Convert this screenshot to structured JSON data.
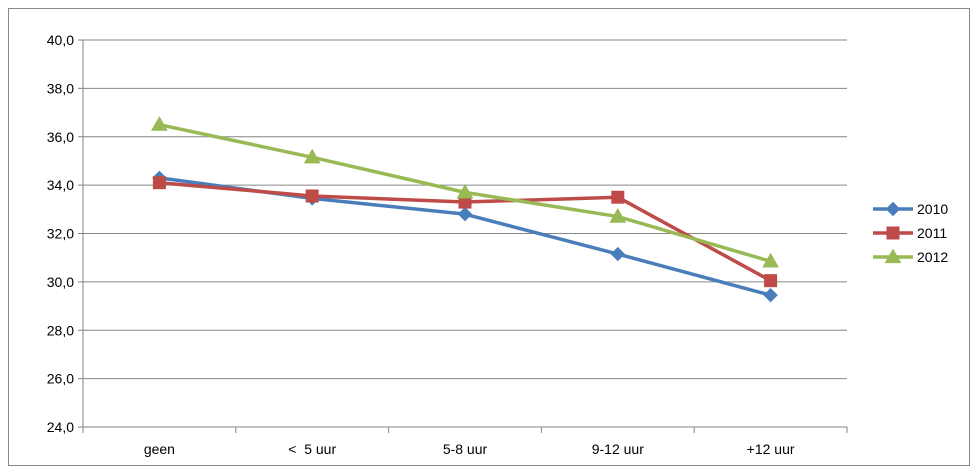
{
  "chart_data": {
    "type": "line",
    "title": "",
    "xlabel": "",
    "ylabel": "",
    "categories": [
      "geen",
      "<  5 uur",
      "5-8 uur",
      "9-12 uur",
      "+12 uur"
    ],
    "ylim": [
      24.0,
      40.0
    ],
    "yticks": [
      "24,0",
      "26,0",
      "28,0",
      "30,0",
      "32,0",
      "34,0",
      "36,0",
      "38,0",
      "40,0"
    ],
    "grid": true,
    "legend_position": "right",
    "series": [
      {
        "name": "2010",
        "values": [
          34.3,
          33.45,
          32.8,
          31.15,
          29.45
        ],
        "color": "#4a7ebb",
        "marker": "diamond"
      },
      {
        "name": "2011",
        "values": [
          34.1,
          33.55,
          33.3,
          33.5,
          30.05
        ],
        "color": "#be4b48",
        "marker": "square"
      },
      {
        "name": "2012",
        "values": [
          36.5,
          35.15,
          33.7,
          32.7,
          30.85
        ],
        "color": "#98b954",
        "marker": "triangle"
      }
    ]
  }
}
